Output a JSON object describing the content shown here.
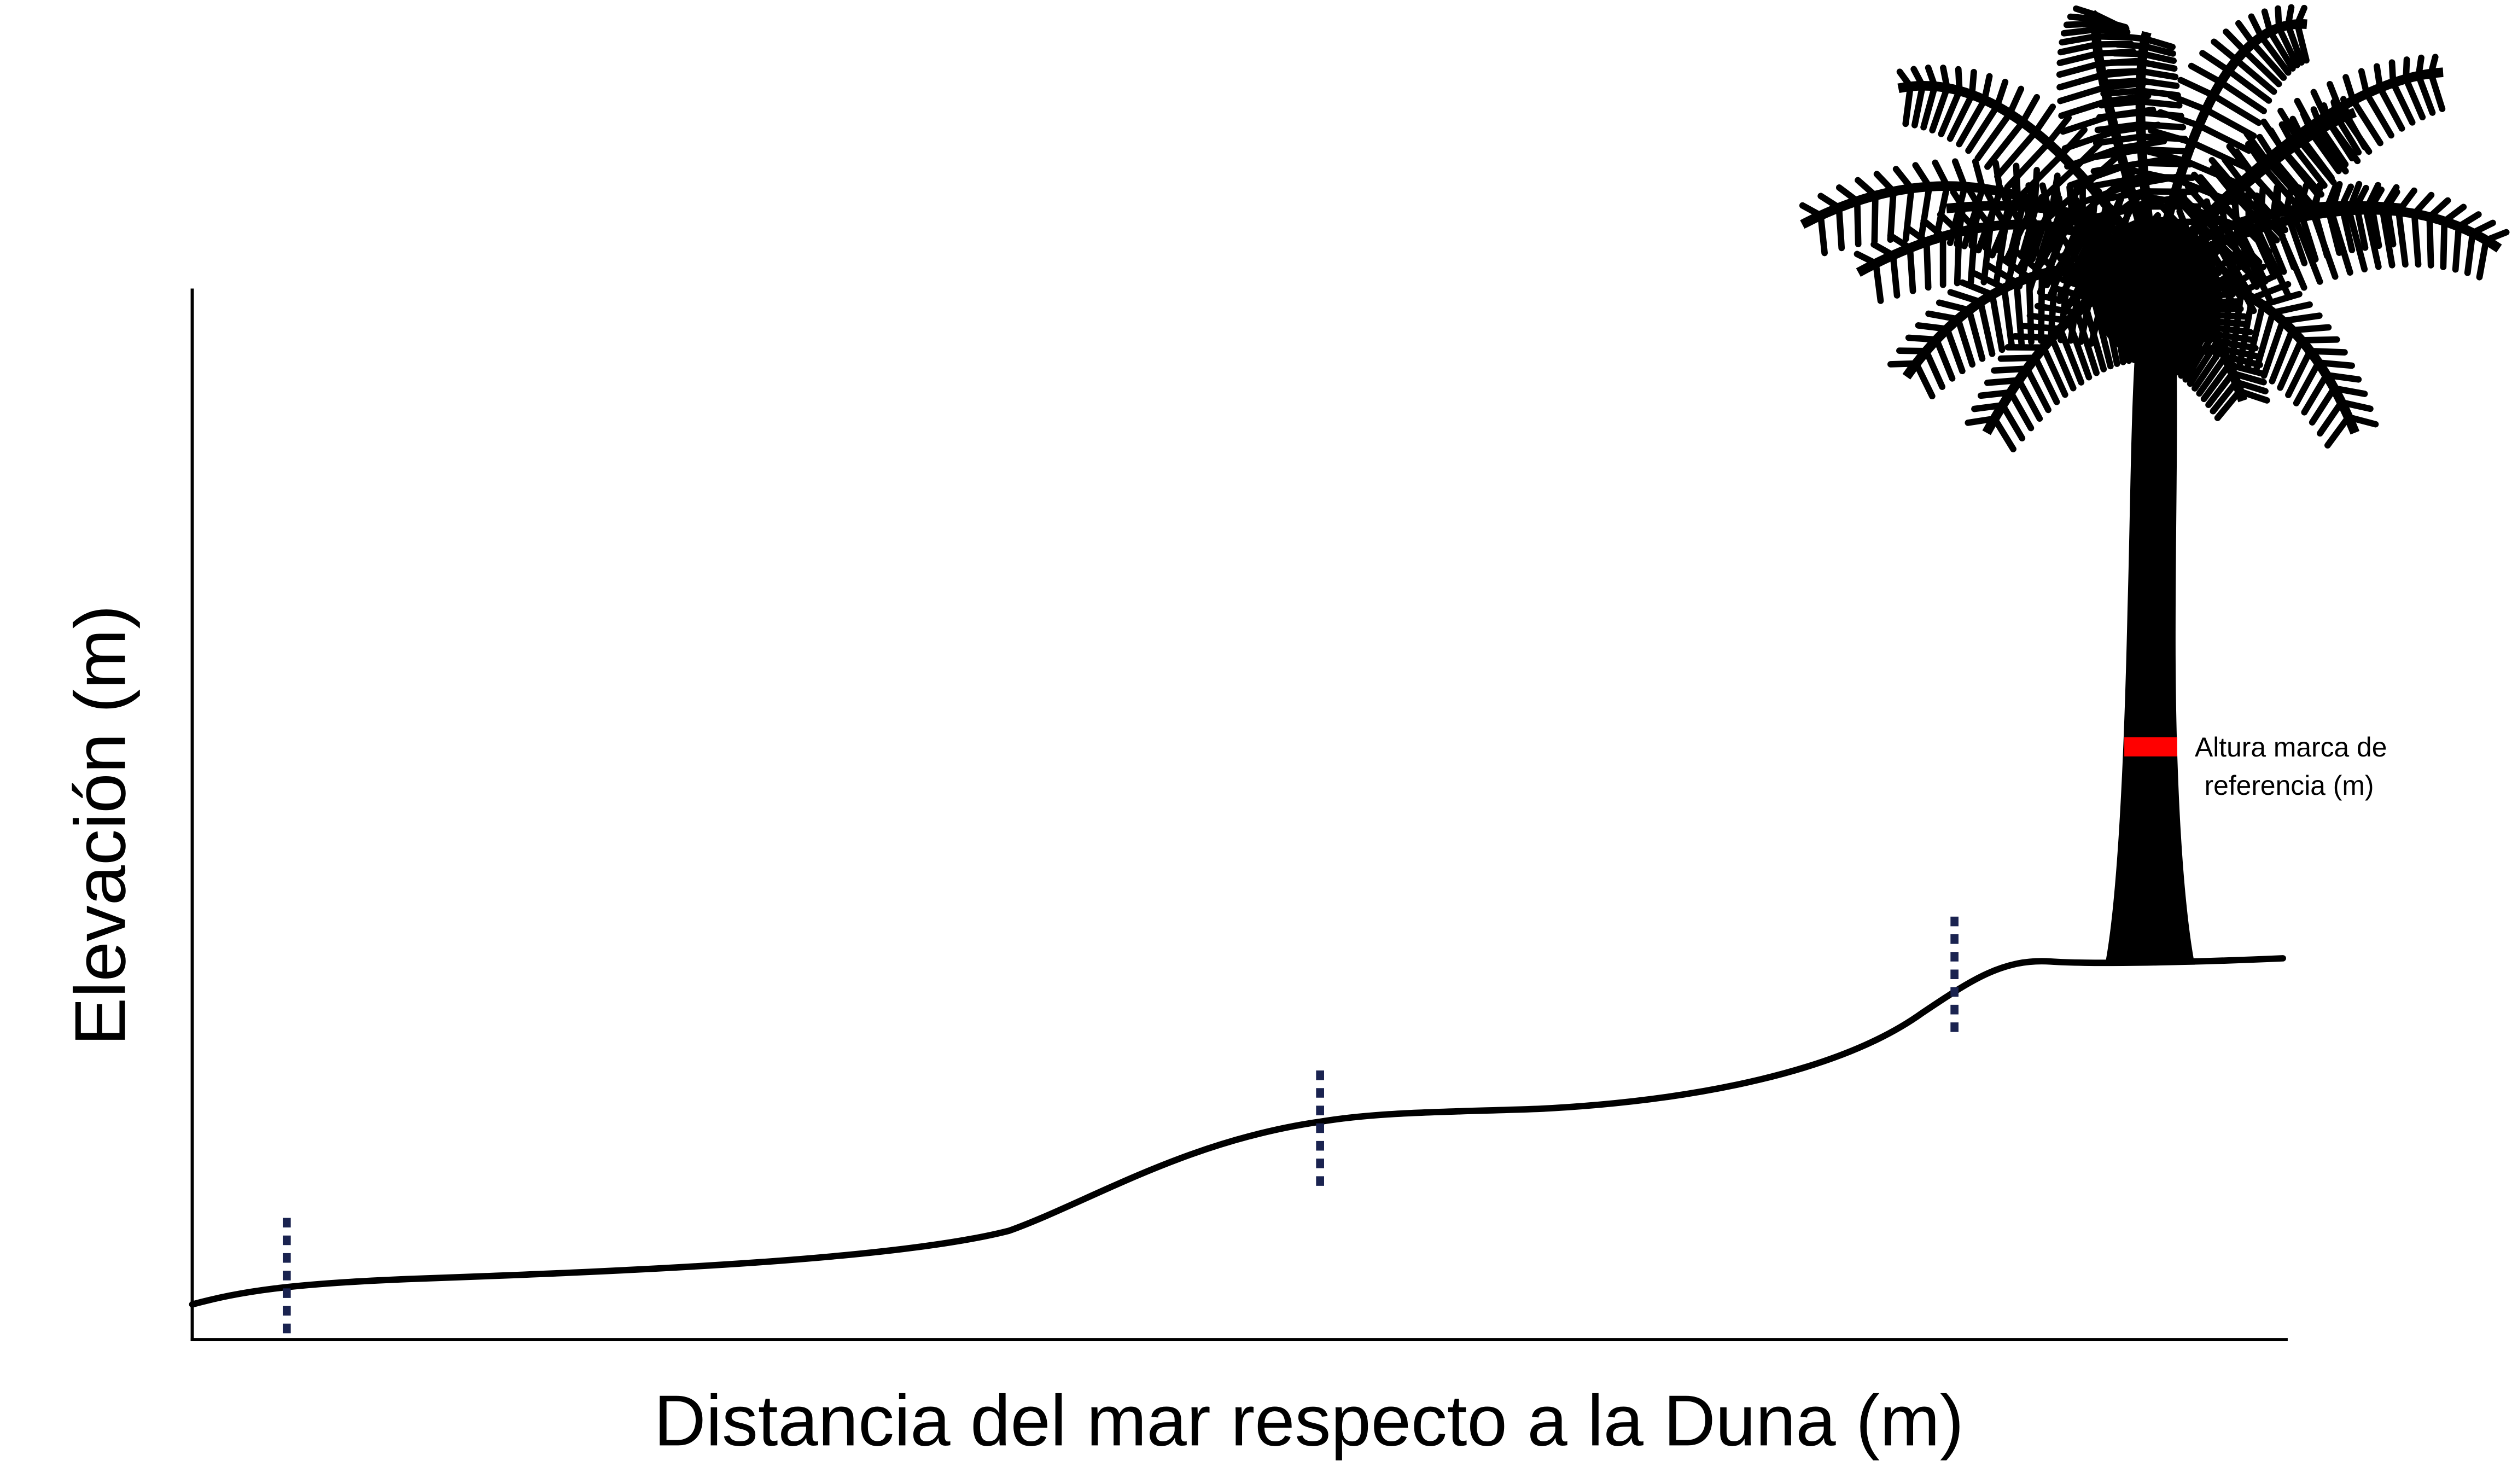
{
  "diagram": {
    "y_axis_label": "Elevación (m)",
    "x_axis_label": "Distancia del mar respecto a la Duna (m)",
    "reference_label_line1": "Altura marca de",
    "reference_label_line2": "referencia (m)",
    "colors": {
      "profile": "#000000",
      "markers": "#1a2350",
      "reference_mark": "#ff0000",
      "palm": "#000000"
    },
    "icons": [
      "palm-tree-silhouette"
    ],
    "transect_markers": 3
  }
}
